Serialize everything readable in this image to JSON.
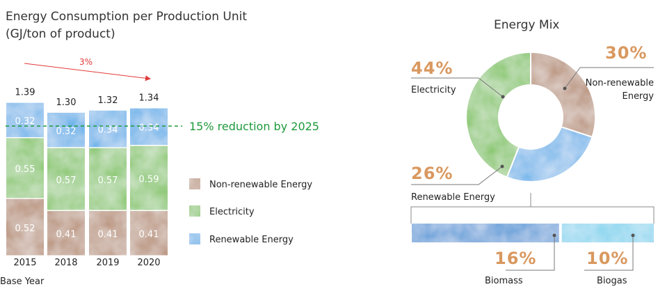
{
  "bar_chart": {
    "title_line1": "Energy Consumption per Production Unit",
    "title_line2": "(GJ/ton of product)",
    "trend_label": "3%",
    "target_label": "15% reduction by 2025",
    "base_year_label": "Base Year"
  },
  "donut_chart": {
    "title": "Energy Mix",
    "sub_breakdown": {
      "biomass_label": "Biomass",
      "biomass_pct": "16%",
      "biogas_label": "Biogas",
      "biogas_pct": "10%"
    }
  },
  "colors": {
    "non_renewable": "#b58a6f",
    "electricity": "#7cc35a",
    "renewable": "#5aaee9",
    "biogas": "#8fdcf0",
    "accent_percent": "#d9985f",
    "target_line": "#1e9a3c",
    "trend_arrow": "#e23a3a"
  },
  "chart_data": [
    {
      "type": "bar",
      "stacked": true,
      "categories": [
        "2015",
        "2018",
        "2019",
        "2020"
      ],
      "series": [
        {
          "name": "Non-renewable Energy",
          "values": [
            0.52,
            0.41,
            0.41,
            0.41
          ],
          "labels": [
            "0.52",
            "0.41",
            "0.41",
            "0.41"
          ]
        },
        {
          "name": "Electricity",
          "values": [
            0.55,
            0.57,
            0.57,
            0.59
          ],
          "labels": [
            "0.55",
            "0.57",
            "0.57",
            "0.59"
          ]
        },
        {
          "name": "Renewable Energy",
          "values": [
            0.32,
            0.32,
            0.34,
            0.34
          ],
          "labels": [
            "0.32",
            "0.32",
            "0.34",
            "0.34"
          ]
        }
      ],
      "totals": [
        1.39,
        1.3,
        1.32,
        1.34
      ],
      "total_labels": [
        "1.39",
        "1.30",
        "1.32",
        "1.34"
      ],
      "target_line_value": 1.18,
      "ylim": [
        0,
        1.45
      ],
      "legend_placement": "right",
      "title": "Energy Consumption per Production Unit",
      "ylabel": "(GJ/ton of product)"
    },
    {
      "type": "pie",
      "donut": true,
      "title": "Energy Mix",
      "slices": [
        {
          "name": "Non-renewable Energy",
          "label_line1": "Non-renewable",
          "label_line2": "Energy",
          "value": 30,
          "pct_label": "30%"
        },
        {
          "name": "Renewable Energy",
          "label_line1": "Renewable Energy",
          "value": 26,
          "pct_label": "26%"
        },
        {
          "name": "Electricity",
          "label_line1": "Electricity",
          "value": 44,
          "pct_label": "44%"
        }
      ]
    }
  ]
}
